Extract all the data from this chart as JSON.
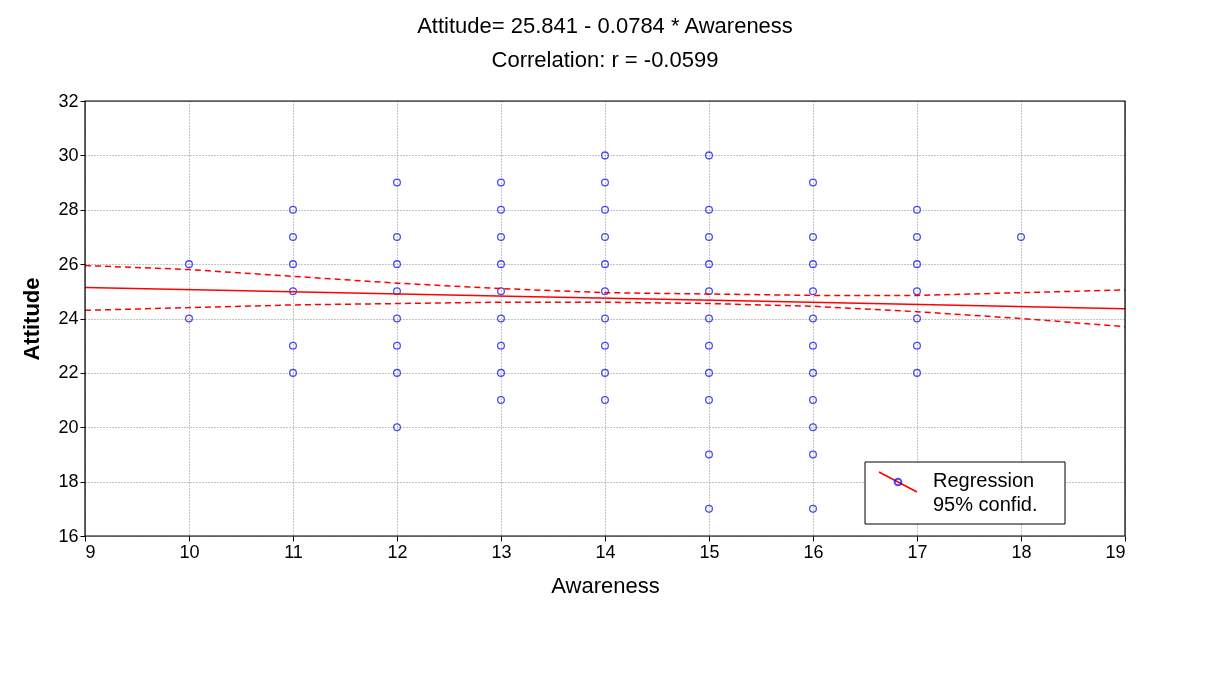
{
  "chart_data": {
    "type": "scatter",
    "title": "Attitude= 25.841 - 0.0784 * Awareness",
    "subtitle": "Correlation: r = -0.0599",
    "xlabel": "Awareness",
    "ylabel": "Attitude",
    "xlim": [
      9,
      19
    ],
    "ylim": [
      16,
      32
    ],
    "xticks": [
      9,
      10,
      11,
      12,
      13,
      14,
      15,
      16,
      17,
      18,
      19
    ],
    "yticks": [
      16,
      18,
      20,
      22,
      24,
      26,
      28,
      30,
      32
    ],
    "grid": true,
    "legend": "bottom right",
    "marker": "circle",
    "annotations": [
      "95% confid."
    ],
    "series": [
      {
        "color": "#0000ff",
        "x": [
          10,
          10,
          11,
          11,
          11,
          11,
          11,
          11,
          12,
          12,
          12,
          12,
          12,
          12,
          12,
          12,
          13,
          13,
          13,
          13,
          13,
          13,
          13,
          13,
          13,
          14,
          14,
          14,
          14,
          14,
          14,
          14,
          14,
          14,
          14,
          15,
          15,
          15,
          15,
          15,
          15,
          15,
          15,
          15,
          15,
          15,
          16,
          16,
          16,
          16,
          16,
          16,
          16,
          16,
          16,
          16,
          16,
          17,
          17,
          17,
          17,
          17,
          17,
          17,
          18
        ],
        "values": [
          26,
          24,
          28,
          27,
          26,
          25,
          23,
          22,
          29,
          27,
          26,
          25,
          24,
          23,
          22,
          20,
          29,
          28,
          27,
          26,
          25,
          24,
          23,
          22,
          21,
          30,
          29,
          28,
          27,
          26,
          25,
          24,
          23,
          22,
          21,
          30,
          28,
          27,
          26,
          25,
          24,
          23,
          22,
          21,
          19,
          17,
          29,
          27,
          26,
          25,
          24,
          23,
          22,
          21,
          20,
          19,
          17,
          28,
          27,
          26,
          25,
          24,
          23,
          22,
          27
        ]
      },
      {
        "type": "line",
        "name": "Regression",
        "color": "#ff0000",
        "line_style": "solid",
        "marker": "none",
        "x": [
          9,
          19
        ],
        "values": [
          25.14,
          24.36
        ]
      },
      {
        "type": "line",
        "color": "#ff0000",
        "line_style": "dashed",
        "marker": "none",
        "x": [
          9,
          10,
          11,
          12,
          13,
          14,
          15,
          16,
          17,
          18,
          19
        ],
        "values": [
          25.95,
          25.8,
          25.55,
          25.3,
          25.1,
          24.95,
          24.9,
          24.85,
          24.85,
          24.95,
          25.05
        ]
      },
      {
        "type": "line",
        "color": "#ff0000",
        "line_style": "dashed",
        "marker": "none",
        "x": [
          9,
          10,
          11,
          12,
          13,
          14,
          15,
          16,
          17,
          18,
          19
        ],
        "values": [
          24.3,
          24.4,
          24.5,
          24.55,
          24.6,
          24.6,
          24.55,
          24.45,
          24.25,
          24.0,
          23.7
        ]
      }
    ]
  }
}
